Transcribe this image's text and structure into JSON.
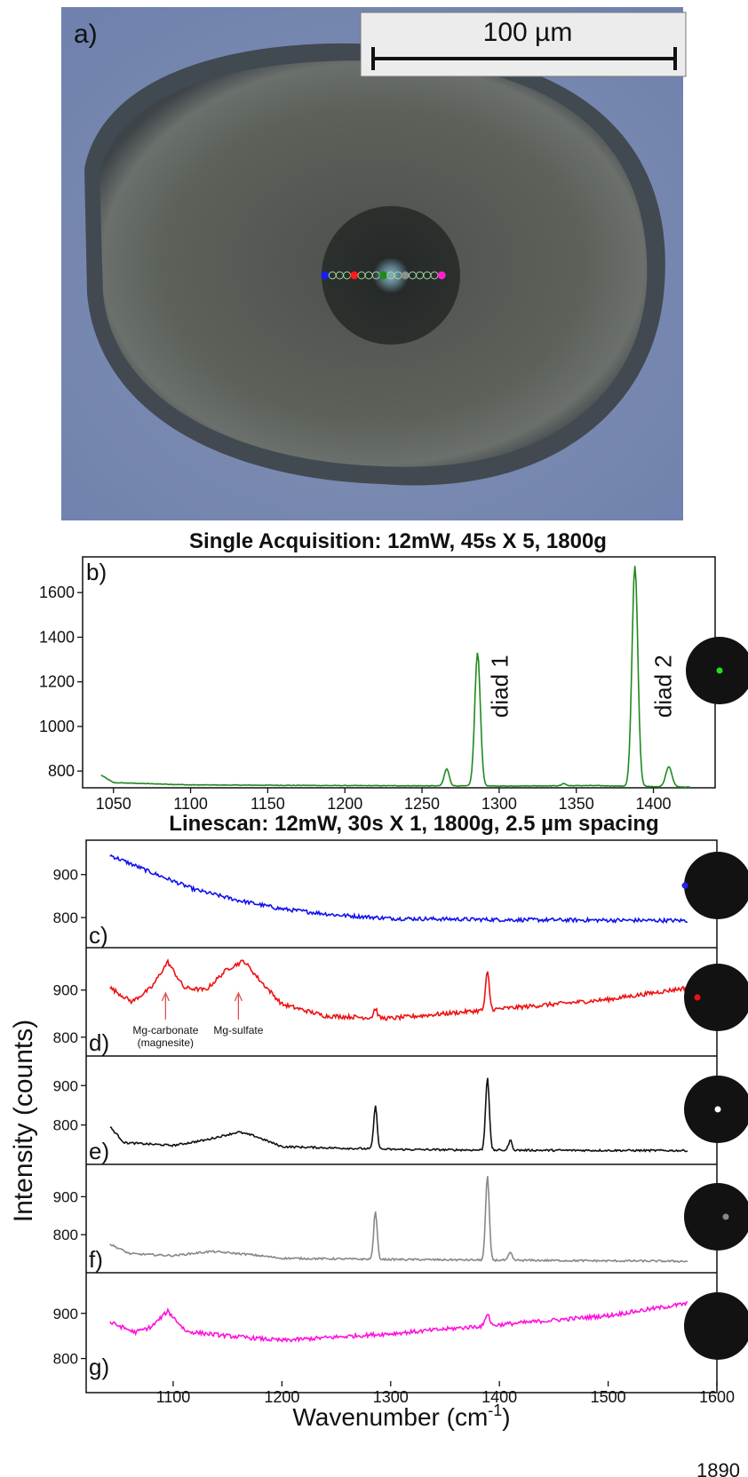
{
  "panel_a": {
    "label": "a)",
    "scale_bar": "100 µm",
    "colors": {
      "background": "#7f8fb2",
      "inclusion": "#54574f",
      "bubble": "#2a2e2b",
      "spot_blue": "#1a1aff",
      "spot_red": "#ff1a1a",
      "spot_green": "#1d8a1d",
      "spot_gray": "#8e8e8e",
      "spot_magenta": "#ff22cc"
    }
  },
  "page_number": "1890",
  "chart_data": [
    {
      "id": "b",
      "type": "line",
      "panel_label": "b)",
      "title": "Single Acquisition: 12mW, 45s X 5,  1800g",
      "xlim": [
        1030,
        1440
      ],
      "ylim": [
        725,
        1760
      ],
      "xticks": [
        1050,
        1100,
        1150,
        1200,
        1250,
        1300,
        1350,
        1400
      ],
      "yticks": [
        800,
        1000,
        1200,
        1400,
        1600
      ],
      "grid": false,
      "series": [
        {
          "color": "#1f8a1f",
          "baseline": [
            [
              1042,
              782
            ],
            [
              1050,
              748
            ],
            [
              1100,
              738
            ],
            [
              1200,
              735
            ],
            [
              1300,
              733
            ],
            [
              1360,
              735
            ],
            [
              1424,
              728
            ]
          ],
          "peaks": [
            [
              1266,
              810,
              1.6
            ],
            [
              1286,
              1330,
              1.8
            ],
            [
              1342,
              745,
              1.2
            ],
            [
              1388,
              1720,
              1.9
            ],
            [
              1410,
              820,
              2.0
            ]
          ]
        }
      ],
      "annotations": [
        {
          "text": "diad 1",
          "x": 1294,
          "y": 1180
        },
        {
          "text": "diad 2",
          "x": 1400,
          "y": 1180
        }
      ],
      "spot": "#22dd22"
    },
    {
      "id": "c",
      "type": "line",
      "panel_label": "c)",
      "title": "Linescan: 12mW, 30s X 1,  1800g, 2.5 µm spacing",
      "xlim": [
        1020,
        1600
      ],
      "ylim": [
        730,
        980
      ],
      "yticks": [
        800,
        900
      ],
      "series": [
        {
          "color": "#1111ee",
          "baseline": [
            [
              1042,
              945
            ],
            [
              1080,
              905
            ],
            [
              1120,
              865
            ],
            [
              1160,
              840
            ],
            [
              1200,
              820
            ],
            [
              1250,
              806
            ],
            [
              1300,
              798
            ],
            [
              1400,
              795
            ],
            [
              1573,
              793
            ]
          ],
          "peaks": []
        }
      ],
      "spot": "#2222ff"
    },
    {
      "id": "d",
      "type": "line",
      "panel_label": "d)",
      "xlim": [
        1020,
        1600
      ],
      "ylim": [
        760,
        990
      ],
      "yticks": [
        800,
        900
      ],
      "series": [
        {
          "color": "#ee1111",
          "baseline": [
            [
              1042,
              905
            ],
            [
              1062,
              875
            ],
            [
              1080,
              905
            ],
            [
              1095,
              960
            ],
            [
              1110,
              905
            ],
            [
              1130,
              900
            ],
            [
              1150,
              945
            ],
            [
              1165,
              962
            ],
            [
              1180,
              920
            ],
            [
              1200,
              870
            ],
            [
              1240,
              845
            ],
            [
              1300,
              840
            ],
            [
              1400,
              860
            ],
            [
              1500,
              880
            ],
            [
              1573,
              905
            ]
          ],
          "peaks": [
            [
              1286,
              20,
              1.6
            ],
            [
              1389,
              80,
              1.7
            ]
          ]
        }
      ],
      "annotations": [
        {
          "text": "Mg-carbonate",
          "sub": "(magnesite)",
          "x": 1093
        },
        {
          "text": "Mg-sulfate",
          "x": 1160
        }
      ],
      "spot": "#ee1111"
    },
    {
      "id": "e",
      "type": "line",
      "panel_label": "e)",
      "xlim": [
        1020,
        1600
      ],
      "ylim": [
        700,
        975
      ],
      "yticks": [
        800,
        900
      ],
      "series": [
        {
          "color": "#111111",
          "baseline": [
            [
              1042,
              795
            ],
            [
              1055,
              755
            ],
            [
              1100,
              748
            ],
            [
              1130,
              762
            ],
            [
              1160,
              782
            ],
            [
              1175,
              772
            ],
            [
              1200,
              745
            ],
            [
              1300,
              738
            ],
            [
              1400,
              736
            ],
            [
              1573,
              735
            ]
          ],
          "peaks": [
            [
              1286,
              108,
              1.6
            ],
            [
              1389,
              185,
              1.7
            ],
            [
              1410,
              25,
              1.6
            ]
          ]
        }
      ],
      "spot": "#ffffff"
    },
    {
      "id": "f",
      "type": "line",
      "panel_label": "f)",
      "xlim": [
        1020,
        1600
      ],
      "ylim": [
        700,
        985
      ],
      "yticks": [
        800,
        900
      ],
      "series": [
        {
          "color": "#888888",
          "baseline": [
            [
              1042,
              775
            ],
            [
              1060,
              750
            ],
            [
              1100,
              745
            ],
            [
              1135,
              756
            ],
            [
              1170,
              748
            ],
            [
              1200,
              738
            ],
            [
              1300,
              735
            ],
            [
              1400,
              733
            ],
            [
              1573,
              730
            ]
          ],
          "peaks": [
            [
              1286,
              125,
              1.6
            ],
            [
              1389,
              220,
              1.7
            ],
            [
              1410,
              20,
              1.6
            ]
          ]
        }
      ],
      "spot": "#888888"
    },
    {
      "id": "g",
      "type": "line",
      "panel_label": "g)",
      "xlim": [
        1020,
        1600
      ],
      "ylim": [
        750,
        990
      ],
      "yticks": [
        800,
        900
      ],
      "xticks": [
        1100,
        1200,
        1300,
        1400,
        1500,
        1600
      ],
      "xlabel": "Wavenumber (cm",
      "xlabel_sup": "-1",
      "xlabel_end": ")",
      "ylabel": "Intensity (counts)",
      "series": [
        {
          "color": "#ff11dd",
          "baseline": [
            [
              1042,
              880
            ],
            [
              1065,
              858
            ],
            [
              1080,
              870
            ],
            [
              1095,
              905
            ],
            [
              1112,
              860
            ],
            [
              1150,
              850
            ],
            [
              1200,
              840
            ],
            [
              1300,
              855
            ],
            [
              1400,
              875
            ],
            [
              1500,
              895
            ],
            [
              1573,
              922
            ]
          ],
          "peaks": [
            [
              1389,
              28,
              1.8
            ]
          ]
        }
      ],
      "spot": null
    }
  ]
}
